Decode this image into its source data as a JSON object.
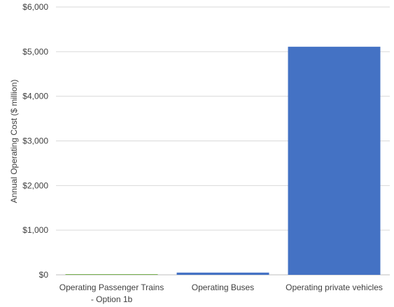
{
  "chart_data": {
    "type": "bar",
    "title": "",
    "xlabel": "",
    "ylabel": "Annual Operating Cost ($ million)",
    "categories": [
      [
        "Operating Passenger Trains",
        "- Option 1b"
      ],
      [
        "Operating Buses"
      ],
      [
        "Operating private vehicles"
      ]
    ],
    "values": [
      15,
      50,
      5110
    ],
    "bar_colors": [
      "#70AD47",
      "#4472C4",
      "#4472C4"
    ],
    "ylim": [
      0,
      6000
    ],
    "yticks": [
      0,
      1000,
      2000,
      3000,
      4000,
      5000,
      6000
    ],
    "ytick_labels": [
      "$0",
      "$1,000",
      "$2,000",
      "$3,000",
      "$4,000",
      "$5,000",
      "$6,000"
    ],
    "grid": true,
    "legend": "none"
  }
}
